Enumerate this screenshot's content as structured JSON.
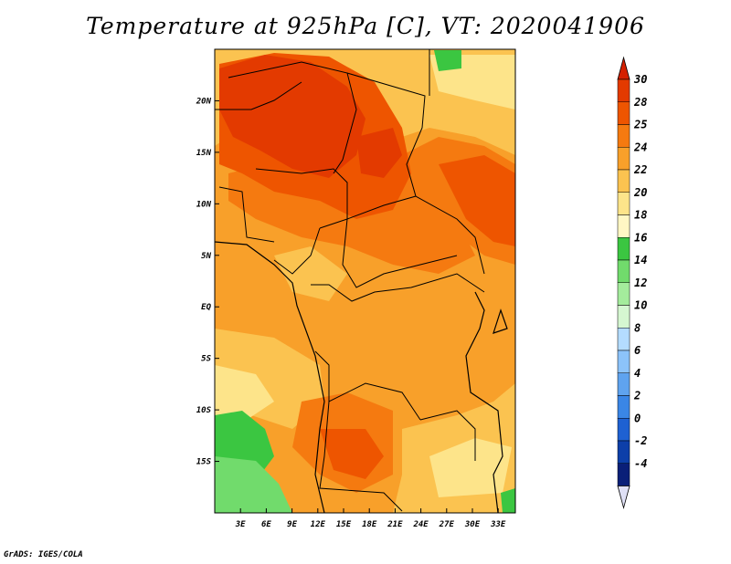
{
  "title": "Temperature at 925hPa [C], VT: 2020041906",
  "footer": "GrADS: IGES/COLA",
  "map": {
    "lon_range": [
      0,
      35
    ],
    "lat_range": [
      -20,
      25
    ],
    "lon_ticks": [
      "3E",
      "6E",
      "9E",
      "12E",
      "15E",
      "18E",
      "21E",
      "24E",
      "27E",
      "30E",
      "33E"
    ],
    "lon_tick_values": [
      3,
      6,
      9,
      12,
      15,
      18,
      21,
      24,
      27,
      30,
      33
    ],
    "lat_ticks": [
      "20N",
      "15N",
      "10N",
      "5N",
      "EQ",
      "5S",
      "10S",
      "15S"
    ],
    "lat_tick_values": [
      20,
      15,
      10,
      5,
      0,
      -5,
      -10,
      -15
    ]
  },
  "colorbar": {
    "labels": [
      "30",
      "28",
      "25",
      "24",
      "22",
      "20",
      "18",
      "16",
      "14",
      "12",
      "10",
      "8",
      "6",
      "4",
      "2",
      "0",
      "-2",
      "-4"
    ],
    "colors": [
      "#e33a00",
      "#ee5500",
      "#f57a10",
      "#f8a02a",
      "#fbc350",
      "#fde48a",
      "#fff7c4",
      "#3bc641",
      "#71db6c",
      "#a4ec9c",
      "#d5f7d1",
      "#b4dcff",
      "#8cc3fa",
      "#5fa3ef",
      "#3a86e6",
      "#1e61d2",
      "#0d3fa9",
      "#0a1f78"
    ],
    "top_color": "#d42000",
    "bottom_color": "#dfe0f5"
  }
}
